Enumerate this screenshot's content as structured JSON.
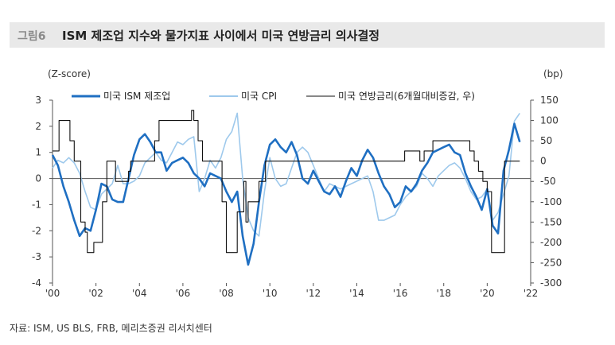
{
  "header": {
    "figure_no": "그림6",
    "title": "ISM 제조업 지수와 물가지표 사이에서 미국 연방금리 의사결정"
  },
  "source": "자료: ISM, US BLS, FRB, 메리츠증권 리서치센터",
  "chart_data": {
    "type": "line",
    "left_unit": "(Z-score)",
    "right_unit": "(bp)",
    "ylim_left": [
      -4,
      3
    ],
    "ylim_right": [
      -300,
      150
    ],
    "xlim": [
      2000,
      2022
    ],
    "y_ticks_left": [
      "3",
      "2",
      "1",
      "0",
      "-1",
      "-2",
      "-3",
      "-4"
    ],
    "y_ticks_right": [
      "150",
      "100",
      "50",
      "0",
      "-50",
      "-100",
      "-150",
      "-200",
      "-250",
      "-300"
    ],
    "x_ticks": [
      "'00",
      "'02",
      "'04",
      "'06",
      "'08",
      "'10",
      "'12",
      "'14",
      "'16",
      "'18",
      "'20",
      "'22"
    ],
    "legend": [
      {
        "name": "미국 ISM 제조업",
        "color": "#1f6fc2"
      },
      {
        "name": "미국 CPI",
        "color": "#9ec9ec"
      },
      {
        "name": "미국 연방금리(6개월대비증감, 우)",
        "color": "#111111"
      }
    ],
    "series": [
      {
        "name": "미국 ISM 제조업",
        "axis": "left",
        "color": "#1f6fc2",
        "x": [
          2000.0,
          2000.25,
          2000.5,
          2000.75,
          2001.0,
          2001.25,
          2001.5,
          2001.75,
          2002.0,
          2002.25,
          2002.5,
          2002.75,
          2003.0,
          2003.25,
          2003.5,
          2003.75,
          2004.0,
          2004.25,
          2004.5,
          2004.75,
          2005.0,
          2005.25,
          2005.5,
          2005.75,
          2006.0,
          2006.25,
          2006.5,
          2006.75,
          2007.0,
          2007.25,
          2007.5,
          2007.75,
          2008.0,
          2008.25,
          2008.5,
          2008.75,
          2009.0,
          2009.25,
          2009.5,
          2009.75,
          2010.0,
          2010.25,
          2010.5,
          2010.75,
          2011.0,
          2011.25,
          2011.5,
          2011.75,
          2012.0,
          2012.25,
          2012.5,
          2012.75,
          2013.0,
          2013.25,
          2013.5,
          2013.75,
          2014.0,
          2014.25,
          2014.5,
          2014.75,
          2015.0,
          2015.25,
          2015.5,
          2015.75,
          2016.0,
          2016.25,
          2016.5,
          2016.75,
          2017.0,
          2017.25,
          2017.5,
          2017.75,
          2018.0,
          2018.25,
          2018.5,
          2018.75,
          2019.0,
          2019.25,
          2019.5,
          2019.75,
          2020.0,
          2020.25,
          2020.5,
          2020.75,
          2021.0,
          2021.25,
          2021.5
        ],
        "values": [
          0.9,
          0.5,
          -0.3,
          -0.9,
          -1.6,
          -2.2,
          -1.9,
          -2.0,
          -1.2,
          -0.2,
          -0.3,
          -0.8,
          -0.9,
          -0.9,
          0.0,
          0.9,
          1.5,
          1.7,
          1.4,
          1.0,
          1.0,
          0.3,
          0.6,
          0.7,
          0.8,
          0.6,
          0.2,
          0.0,
          -0.3,
          0.2,
          0.1,
          0.0,
          -0.5,
          -0.9,
          -0.5,
          -2.2,
          -3.3,
          -2.5,
          -0.9,
          0.5,
          1.3,
          1.5,
          1.2,
          1.0,
          1.4,
          0.9,
          0.0,
          -0.2,
          0.3,
          -0.1,
          -0.5,
          -0.6,
          -0.3,
          -0.7,
          -0.1,
          0.4,
          0.1,
          0.7,
          1.1,
          0.8,
          0.2,
          -0.3,
          -0.6,
          -1.1,
          -0.9,
          -0.3,
          -0.5,
          -0.2,
          0.3,
          0.6,
          1.0,
          1.1,
          1.2,
          1.3,
          1.0,
          0.9,
          0.2,
          -0.3,
          -0.7,
          -1.2,
          -0.4,
          -1.8,
          -2.1,
          0.3,
          1.1,
          2.1,
          1.4
        ]
      },
      {
        "name": "미국 CPI",
        "axis": "left",
        "color": "#9ec9ec",
        "x": [
          2000.0,
          2000.25,
          2000.5,
          2000.75,
          2001.0,
          2001.25,
          2001.5,
          2001.75,
          2002.0,
          2002.25,
          2002.5,
          2002.75,
          2003.0,
          2003.25,
          2003.5,
          2003.75,
          2004.0,
          2004.25,
          2004.5,
          2004.75,
          2005.0,
          2005.25,
          2005.5,
          2005.75,
          2006.0,
          2006.25,
          2006.5,
          2006.75,
          2007.0,
          2007.25,
          2007.5,
          2007.75,
          2008.0,
          2008.25,
          2008.5,
          2008.75,
          2009.0,
          2009.25,
          2009.5,
          2009.75,
          2010.0,
          2010.25,
          2010.5,
          2010.75,
          2011.0,
          2011.25,
          2011.5,
          2011.75,
          2012.0,
          2012.25,
          2012.5,
          2012.75,
          2013.0,
          2013.25,
          2013.5,
          2013.75,
          2014.0,
          2014.25,
          2014.5,
          2014.75,
          2015.0,
          2015.25,
          2015.5,
          2015.75,
          2016.0,
          2016.25,
          2016.5,
          2016.75,
          2017.0,
          2017.25,
          2017.5,
          2017.75,
          2018.0,
          2018.25,
          2018.5,
          2018.75,
          2019.0,
          2019.25,
          2019.5,
          2019.75,
          2020.0,
          2020.25,
          2020.5,
          2020.75,
          2021.0,
          2021.25,
          2021.5
        ],
        "values": [
          0.4,
          0.7,
          0.6,
          0.8,
          0.6,
          0.2,
          -0.5,
          -1.1,
          -1.2,
          -0.6,
          -0.4,
          -0.2,
          0.5,
          -0.2,
          -0.2,
          -0.1,
          0.1,
          0.6,
          0.8,
          1.0,
          0.7,
          0.6,
          1.0,
          1.4,
          1.3,
          1.5,
          1.6,
          -0.5,
          0.0,
          0.7,
          0.4,
          0.8,
          1.5,
          1.8,
          2.5,
          0.0,
          -1.5,
          -2.0,
          -2.2,
          -0.5,
          0.8,
          0.0,
          -0.3,
          -0.2,
          0.4,
          1.0,
          1.2,
          1.0,
          0.5,
          0.0,
          -0.5,
          -0.2,
          -0.3,
          -0.4,
          -0.3,
          -0.2,
          -0.1,
          0.0,
          0.1,
          -0.5,
          -1.6,
          -1.6,
          -1.5,
          -1.4,
          -1.0,
          -0.7,
          -0.5,
          -0.3,
          0.2,
          0.0,
          -0.3,
          0.1,
          0.3,
          0.5,
          0.6,
          0.4,
          0.0,
          -0.5,
          -0.8,
          -0.7,
          -0.4,
          -1.6,
          -1.3,
          -0.6,
          0.1,
          2.2,
          2.5
        ]
      },
      {
        "name": "미국 연방금리(6개월대비증감, 우)",
        "axis": "right",
        "color": "#111111",
        "x": [
          2000.0,
          2000.3,
          2000.5,
          2000.8,
          2001.0,
          2001.3,
          2001.5,
          2001.6,
          2001.9,
          2002.0,
          2002.3,
          2002.5,
          2002.9,
          2003.2,
          2003.5,
          2003.6,
          2003.9,
          2004.5,
          2004.7,
          2004.9,
          2005.3,
          2005.5,
          2005.7,
          2006.0,
          2006.3,
          2006.4,
          2006.5,
          2006.6,
          2006.7,
          2006.9,
          2007.0,
          2007.6,
          2007.8,
          2008.0,
          2008.2,
          2008.5,
          2008.8,
          2008.9,
          2009.0,
          2009.5,
          2009.8,
          2015.8,
          2016.2,
          2016.5,
          2016.9,
          2017.1,
          2017.5,
          2017.9,
          2018.5,
          2018.9,
          2019.2,
          2019.4,
          2019.6,
          2019.8,
          2020.0,
          2020.1,
          2020.2,
          2020.5,
          2020.8,
          2021.5
        ],
        "values": [
          25,
          100,
          100,
          50,
          0,
          -150,
          -175,
          -225,
          -200,
          -200,
          -100,
          0,
          -50,
          -50,
          -25,
          0,
          0,
          0,
          50,
          100,
          100,
          100,
          100,
          100,
          100,
          125,
          100,
          100,
          50,
          0,
          0,
          0,
          -100,
          -225,
          -225,
          -125,
          -50,
          -150,
          -100,
          -50,
          0,
          0,
          25,
          25,
          0,
          25,
          50,
          50,
          50,
          50,
          25,
          0,
          -25,
          -50,
          -75,
          -75,
          -225,
          -225,
          0,
          0
        ]
      }
    ]
  }
}
